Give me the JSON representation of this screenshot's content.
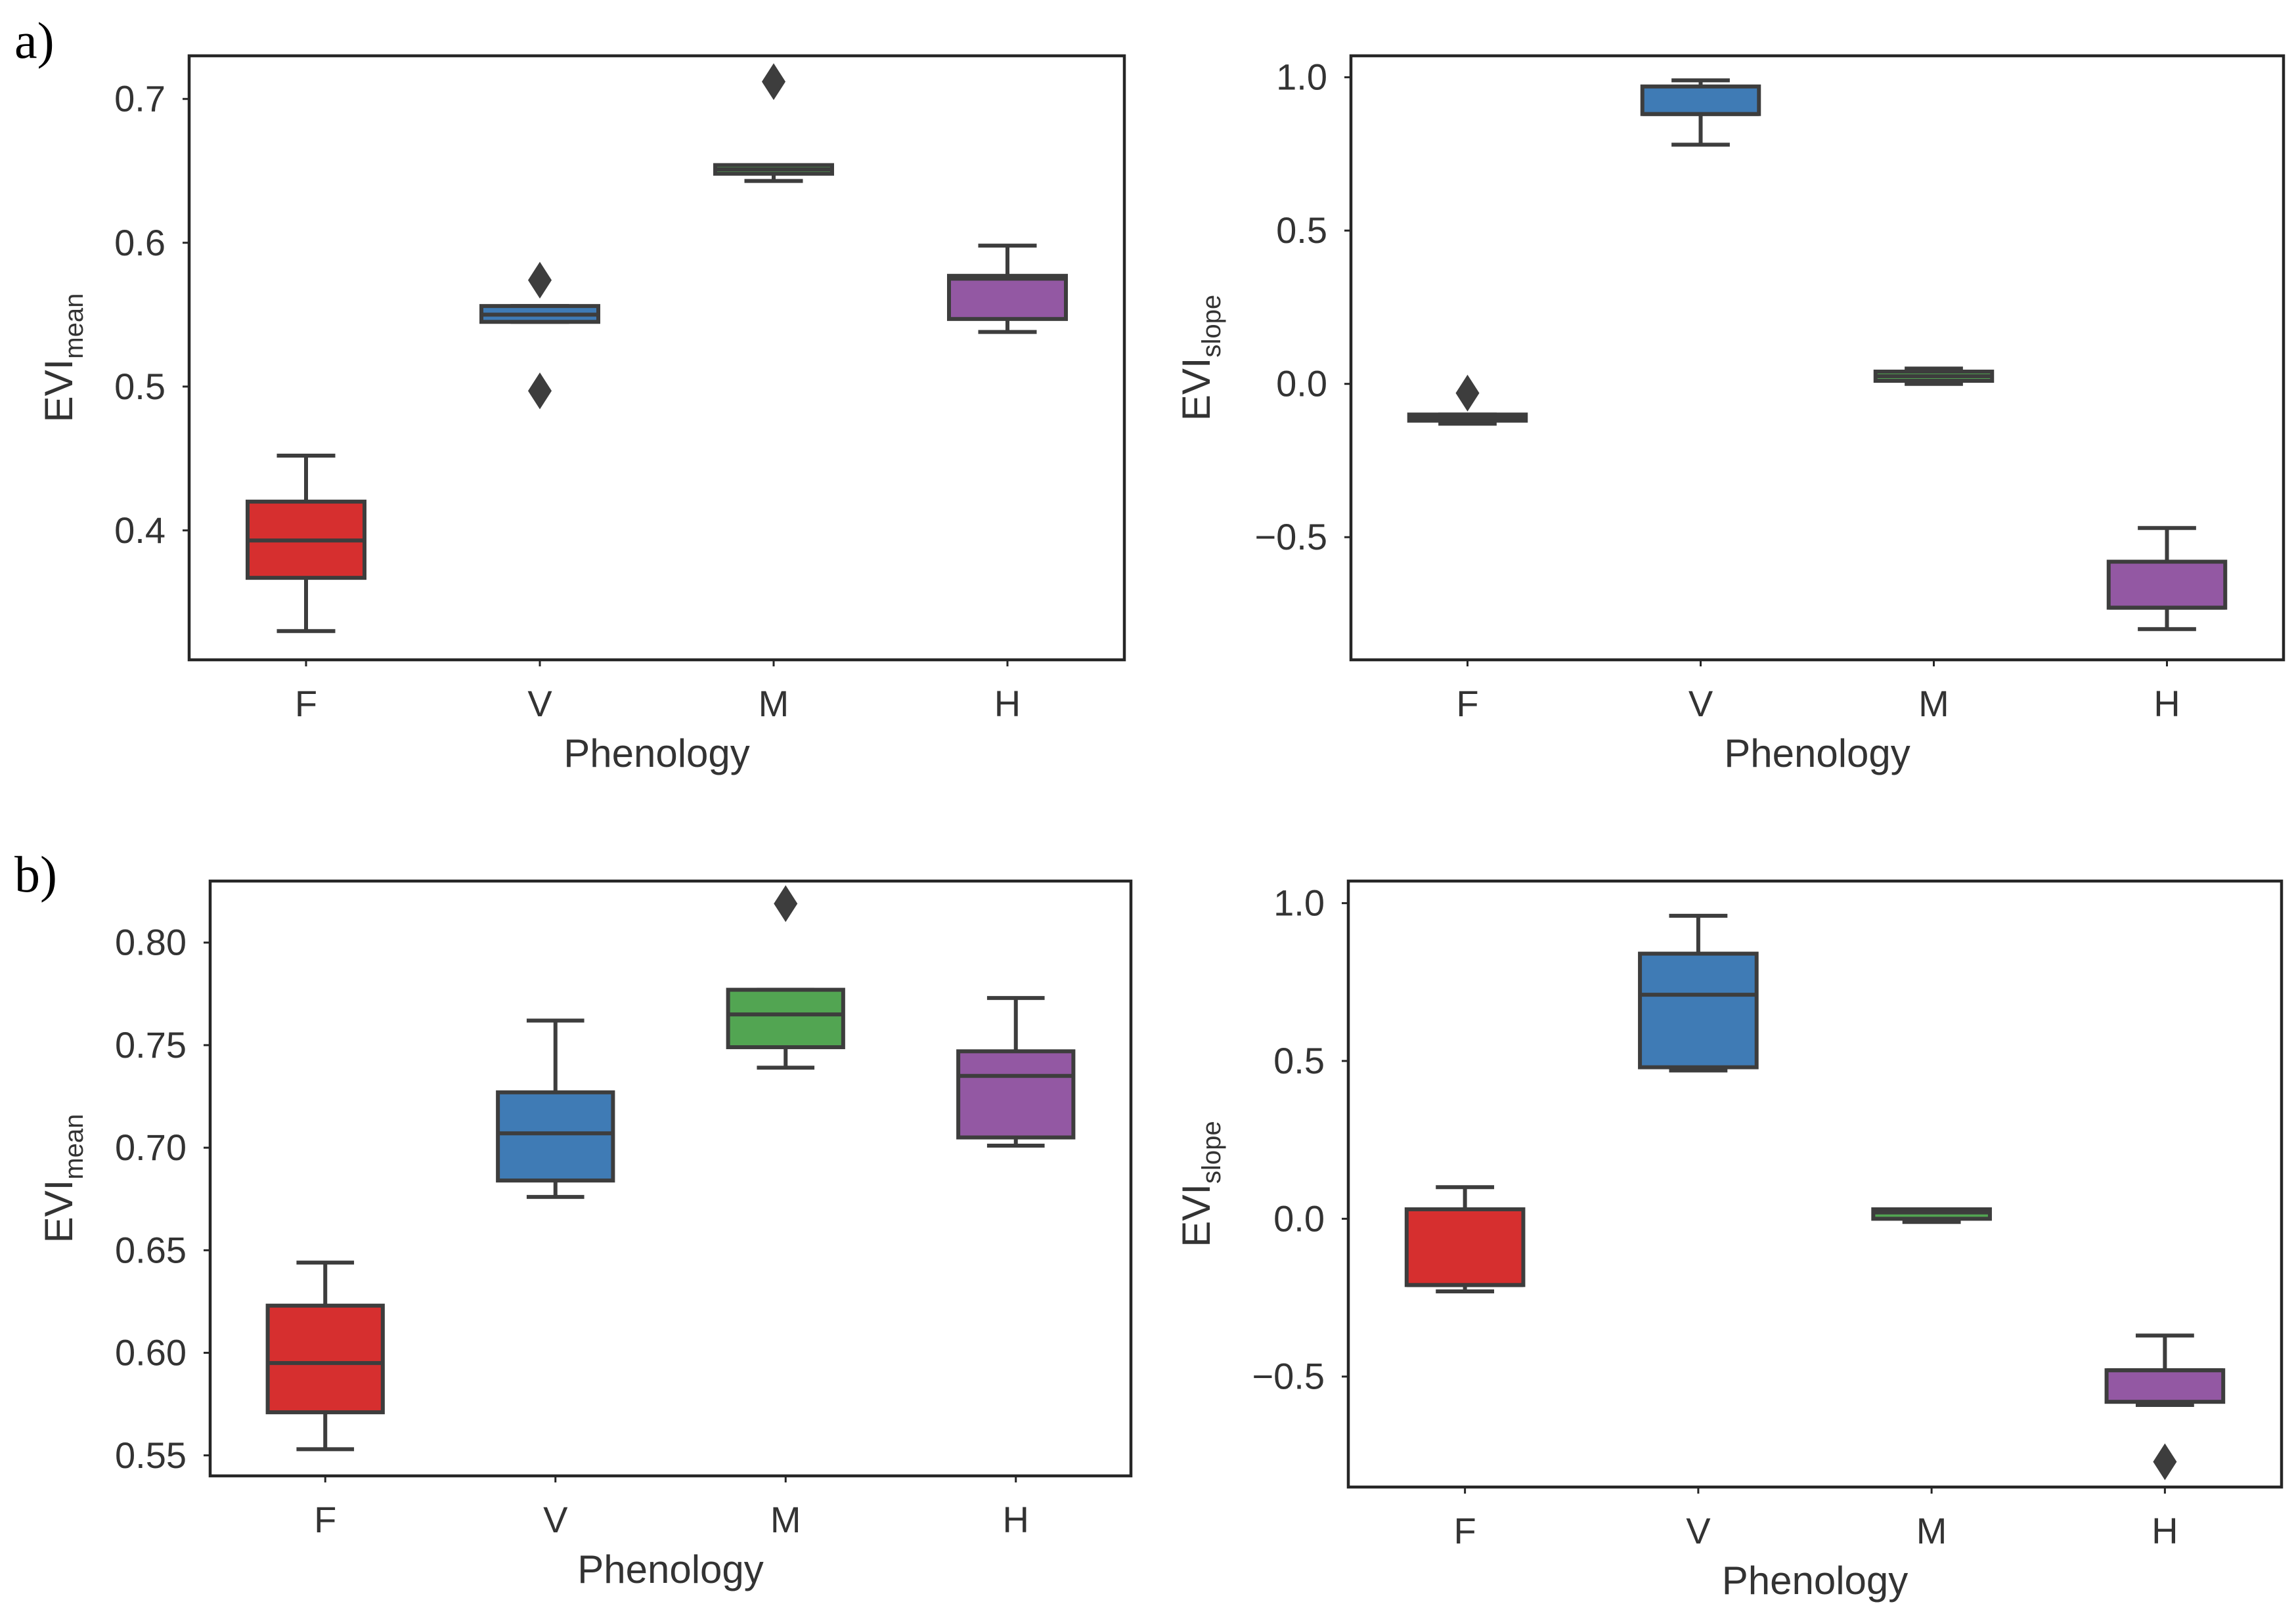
{
  "panel_labels": [
    "a)",
    "b)"
  ],
  "colors": {
    "F": "#d62f2f",
    "V": "#3f7bb5",
    "M": "#52a552",
    "H": "#9358a3"
  },
  "chart_data": [
    {
      "type": "box",
      "panel": "a)",
      "xlabel": "Phenology",
      "ylabel": "EVI",
      "ylabel_sub": "mean",
      "ylim": [
        0.31,
        0.73
      ],
      "yticks": [
        0.4,
        0.5,
        0.6,
        0.7
      ],
      "ytick_labels": [
        "0.4",
        "0.5",
        "0.6",
        "0.7"
      ],
      "categories": [
        "F",
        "V",
        "M",
        "H"
      ],
      "boxes": [
        {
          "category": "F",
          "whislo": 0.33,
          "q1": 0.367,
          "med": 0.393,
          "q3": 0.42,
          "whishi": 0.452,
          "fliers": []
        },
        {
          "category": "V",
          "whislo": 0.545,
          "q1": 0.545,
          "med": 0.55,
          "q3": 0.556,
          "whishi": 0.556,
          "fliers": [
            0.574,
            0.497
          ]
        },
        {
          "category": "M",
          "whislo": 0.643,
          "q1": 0.648,
          "med": 0.651,
          "q3": 0.654,
          "whishi": 0.654,
          "fliers": [
            0.712
          ]
        },
        {
          "category": "H",
          "whislo": 0.538,
          "q1": 0.547,
          "med": 0.575,
          "q3": 0.577,
          "whishi": 0.598,
          "fliers": []
        }
      ]
    },
    {
      "type": "box",
      "panel": "a)",
      "xlabel": "Phenology",
      "ylabel": "EVI",
      "ylabel_sub": "slope",
      "ylim": [
        -0.9,
        1.07
      ],
      "yticks": [
        -0.5,
        0.0,
        0.5,
        1.0
      ],
      "ytick_labels": [
        "−0.5",
        "0.0",
        "0.5",
        "1.0"
      ],
      "categories": [
        "F",
        "V",
        "M",
        "H"
      ],
      "boxes": [
        {
          "category": "F",
          "whislo": -0.13,
          "q1": -0.12,
          "med": -0.11,
          "q3": -0.1,
          "whishi": -0.1,
          "fliers": [
            -0.03
          ]
        },
        {
          "category": "V",
          "whislo": 0.78,
          "q1": 0.88,
          "med": 0.88,
          "q3": 0.97,
          "whishi": 0.99,
          "fliers": []
        },
        {
          "category": "M",
          "whislo": 0.0,
          "q1": 0.01,
          "med": 0.025,
          "q3": 0.04,
          "whishi": 0.05,
          "fliers": []
        },
        {
          "category": "H",
          "whislo": -0.8,
          "q1": -0.73,
          "med": -0.73,
          "q3": -0.58,
          "whishi": -0.47,
          "fliers": []
        }
      ]
    },
    {
      "type": "box",
      "panel": "b)",
      "xlabel": "Phenology",
      "ylabel": "EVI",
      "ylabel_sub": "mean",
      "ylim": [
        0.54,
        0.83
      ],
      "yticks": [
        0.55,
        0.6,
        0.65,
        0.7,
        0.75,
        0.8
      ],
      "ytick_labels": [
        "0.55",
        "0.60",
        "0.65",
        "0.70",
        "0.75",
        "0.80"
      ],
      "categories": [
        "F",
        "V",
        "M",
        "H"
      ],
      "boxes": [
        {
          "category": "F",
          "whislo": 0.553,
          "q1": 0.571,
          "med": 0.595,
          "q3": 0.623,
          "whishi": 0.644,
          "fliers": []
        },
        {
          "category": "V",
          "whislo": 0.676,
          "q1": 0.684,
          "med": 0.707,
          "q3": 0.727,
          "whishi": 0.762,
          "fliers": []
        },
        {
          "category": "M",
          "whislo": 0.739,
          "q1": 0.749,
          "med": 0.765,
          "q3": 0.777,
          "whishi": 0.777,
          "fliers": [
            0.819
          ]
        },
        {
          "category": "H",
          "whislo": 0.701,
          "q1": 0.705,
          "med": 0.735,
          "q3": 0.747,
          "whishi": 0.773,
          "fliers": []
        }
      ]
    },
    {
      "type": "box",
      "panel": "b)",
      "xlabel": "Phenology",
      "ylabel": "EVI",
      "ylabel_sub": "slope",
      "ylim": [
        -0.85,
        1.07
      ],
      "yticks": [
        -0.5,
        0.0,
        0.5,
        1.0
      ],
      "ytick_labels": [
        "−0.5",
        "0.0",
        "0.5",
        "1.0"
      ],
      "categories": [
        "F",
        "V",
        "M",
        "H"
      ],
      "boxes": [
        {
          "category": "F",
          "whislo": -0.23,
          "q1": -0.21,
          "med": -0.21,
          "q3": 0.03,
          "whishi": 0.1,
          "fliers": []
        },
        {
          "category": "V",
          "whislo": 0.47,
          "q1": 0.48,
          "med": 0.71,
          "q3": 0.84,
          "whishi": 0.96,
          "fliers": []
        },
        {
          "category": "M",
          "whislo": -0.01,
          "q1": 0.0,
          "med": 0.02,
          "q3": 0.03,
          "whishi": 0.03,
          "fliers": []
        },
        {
          "category": "H",
          "whislo": -0.59,
          "q1": -0.58,
          "med": -0.48,
          "q3": -0.48,
          "whishi": -0.37,
          "fliers": [
            -0.77
          ]
        }
      ]
    }
  ]
}
